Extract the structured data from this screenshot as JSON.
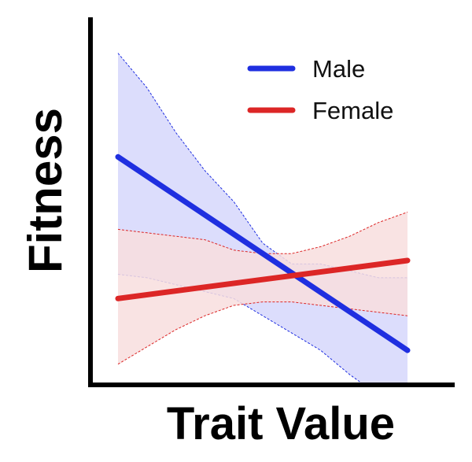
{
  "chart_data": {
    "type": "line",
    "xlabel": "Trait Value",
    "ylabel": "Fitness",
    "xlim": [
      0,
      1
    ],
    "ylim": [
      0,
      1
    ],
    "grid": false,
    "legend_position": "top-right",
    "series": [
      {
        "name": "Male",
        "color": "#1f2fe0",
        "band_fill": "#d6d7fb",
        "x": [
          0.0,
          1.0
        ],
        "y": [
          0.66,
          0.1
        ],
        "ci_lower": [
          [
            0.0,
            0.32
          ],
          [
            0.1,
            0.31
          ],
          [
            0.2,
            0.29
          ],
          [
            0.3,
            0.27
          ],
          [
            0.4,
            0.25
          ],
          [
            0.5,
            0.2
          ],
          [
            0.6,
            0.15
          ],
          [
            0.7,
            0.1
          ],
          [
            0.8,
            0.03
          ],
          [
            0.85,
            0.0
          ]
        ],
        "ci_upper": [
          [
            0.0,
            0.96
          ],
          [
            0.1,
            0.86
          ],
          [
            0.2,
            0.73
          ],
          [
            0.3,
            0.62
          ],
          [
            0.4,
            0.53
          ],
          [
            0.5,
            0.41
          ],
          [
            0.6,
            0.35
          ],
          [
            0.7,
            0.35
          ],
          [
            0.8,
            0.33
          ],
          [
            0.9,
            0.31
          ],
          [
            1.0,
            0.31
          ]
        ],
        "ci_right_bottom": 0.0
      },
      {
        "name": "Female",
        "color": "#dc2626",
        "band_fill": "#f8dede",
        "x": [
          0.0,
          1.0
        ],
        "y": [
          0.25,
          0.36
        ],
        "ci_lower": [
          [
            0.0,
            0.06
          ],
          [
            0.1,
            0.11
          ],
          [
            0.2,
            0.16
          ],
          [
            0.3,
            0.2
          ],
          [
            0.4,
            0.23
          ],
          [
            0.5,
            0.24
          ],
          [
            0.6,
            0.24
          ],
          [
            0.7,
            0.23
          ],
          [
            0.8,
            0.22
          ],
          [
            0.9,
            0.21
          ],
          [
            1.0,
            0.2
          ]
        ],
        "ci_upper": [
          [
            0.0,
            0.45
          ],
          [
            0.1,
            0.44
          ],
          [
            0.2,
            0.43
          ],
          [
            0.3,
            0.42
          ],
          [
            0.4,
            0.39
          ],
          [
            0.5,
            0.38
          ],
          [
            0.6,
            0.38
          ],
          [
            0.7,
            0.4
          ],
          [
            0.8,
            0.43
          ],
          [
            0.9,
            0.47
          ],
          [
            1.0,
            0.5
          ]
        ]
      }
    ]
  }
}
